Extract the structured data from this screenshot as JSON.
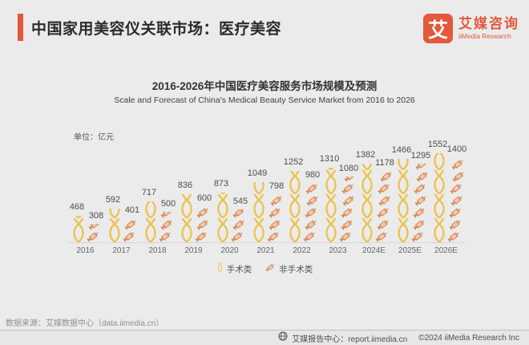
{
  "header": {
    "title": "中国家用美容仪关联市场：医疗美容"
  },
  "logo": {
    "symbol": "艾",
    "name_cn": "艾媒咨询",
    "name_en": "iiMedia Research"
  },
  "chart": {
    "title": "2016-2026年中国医疗美容服务市场规模及预测",
    "subtitle": "Scale and Forecast of China's Medical Beauty Service Market from 2016 to 2026",
    "unit_label": "单位：亿元"
  },
  "chart_data": {
    "type": "bar",
    "title": "2016-2026年中国医疗美容服务市场规模及预测",
    "subtitle": "Scale and Forecast of China's Medical Beauty Service Market from 2016 to 2026",
    "unit": "亿元",
    "categories": [
      "2016",
      "2017",
      "2018",
      "2019",
      "2020",
      "2021",
      "2022",
      "2023",
      "2024E",
      "2025E",
      "2026E"
    ],
    "series": [
      {
        "name": "手术类",
        "icon": "tweezers-icon",
        "color": "#ecc24c",
        "values": [
          468,
          592,
          717,
          836,
          873,
          1049,
          1252,
          1310,
          1382,
          1466,
          1552
        ]
      },
      {
        "name": "非手术类",
        "icon": "syringe-icon",
        "color": "#db8b58",
        "values": [
          308,
          401,
          500,
          600,
          545,
          798,
          980,
          1080,
          1178,
          1295,
          1400
        ]
      }
    ],
    "ylim": [
      0,
      1600
    ],
    "grid": false,
    "legend_position": "bottom",
    "pictogram": true
  },
  "source": {
    "text": "数据来源：艾媒数据中心（data.iimedia.cn）"
  },
  "footer": {
    "report_center": "艾媒报告中心：report.iimedia.cn",
    "copyright": "©2024 iiMedia Research Inc"
  },
  "colors": {
    "accent": "#e2593c",
    "background": "#ebebeb",
    "surgical_yellow": "#ecc24c",
    "nonsurgical_orange": "#db8b58"
  }
}
